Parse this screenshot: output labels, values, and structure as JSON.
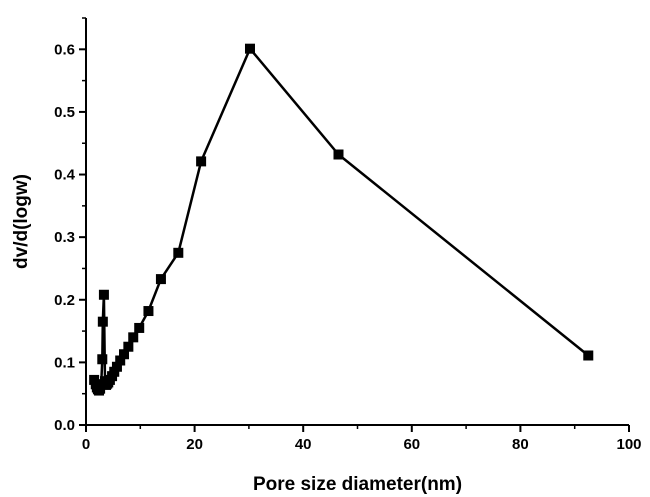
{
  "chart_data": {
    "type": "line",
    "xlabel": "Pore size diameter(nm)",
    "ylabel": "dv/d(logw)",
    "xlim": [
      0,
      100
    ],
    "ylim": [
      0,
      0.65
    ],
    "x_ticks": [
      0,
      20,
      40,
      60,
      80,
      100
    ],
    "x_tick_labels": [
      "0",
      "20",
      "40",
      "60",
      "80",
      "100"
    ],
    "y_ticks": [
      0,
      0.1,
      0.2,
      0.3,
      0.4,
      0.5,
      0.6
    ],
    "y_tick_labels": [
      "0.0",
      "0.1",
      "0.2",
      "0.3",
      "0.4",
      "0.5",
      "0.6"
    ],
    "grid": false,
    "marker": "filled-square",
    "line_color": "#000000",
    "series": [
      {
        "x": [
          1.5,
          1.8,
          2.0,
          2.2,
          2.4,
          2.6,
          2.8,
          3.0,
          3.1,
          3.3,
          3.5,
          3.7,
          3.9,
          4.1,
          4.4,
          4.8,
          5.2,
          5.7,
          6.3,
          7.0,
          7.8,
          8.7,
          9.8,
          11.5,
          13.8,
          17.0,
          21.2,
          30.2,
          46.5,
          92.5
        ],
        "y": [
          0.072,
          0.065,
          0.06,
          0.057,
          0.055,
          0.058,
          0.065,
          0.105,
          0.165,
          0.208,
          0.07,
          0.064,
          0.066,
          0.068,
          0.072,
          0.078,
          0.085,
          0.093,
          0.103,
          0.113,
          0.125,
          0.14,
          0.155,
          0.182,
          0.233,
          0.275,
          0.421,
          0.601,
          0.432,
          0.111
        ]
      }
    ]
  }
}
